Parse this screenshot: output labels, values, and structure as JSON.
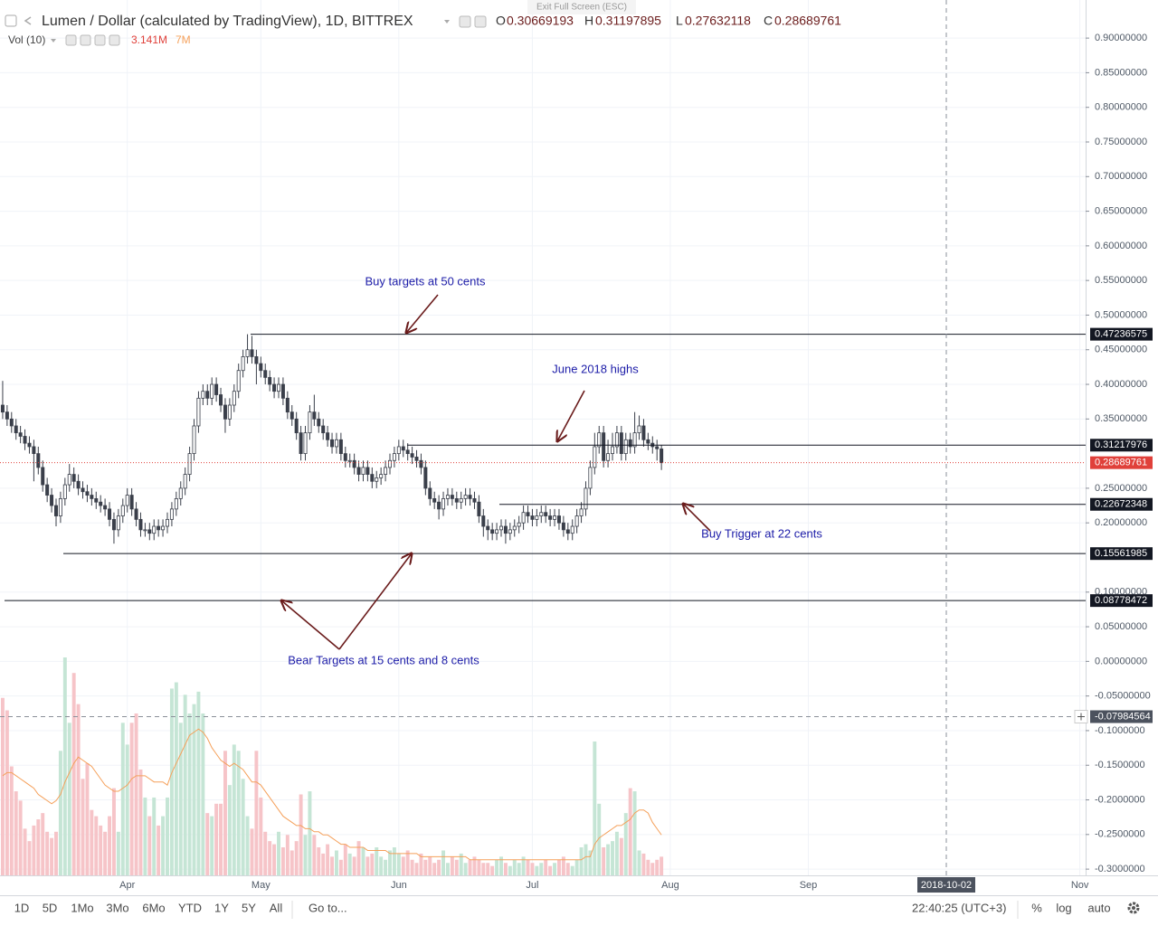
{
  "chart_data": {
    "type": "candlestick",
    "title": "Lumen / Dollar (calculated by TradingView), 1D, BITTREX",
    "categories": [
      null,
      null,
      null,
      null,
      null,
      null,
      null,
      null,
      null,
      null,
      null,
      null,
      null,
      null,
      null,
      null,
      null,
      null,
      null,
      null,
      null,
      null,
      null,
      null,
      null,
      null,
      null,
      null,
      null,
      null,
      null,
      null,
      null,
      null,
      null,
      null,
      null,
      null,
      null,
      null,
      null,
      null,
      null,
      null,
      null,
      null,
      null,
      null,
      null,
      null,
      null,
      null,
      null,
      null,
      null,
      null,
      null,
      null,
      null,
      null,
      null,
      null,
      null,
      null,
      null,
      null,
      null,
      null,
      null,
      null,
      null,
      null,
      null,
      null,
      null,
      null,
      null,
      null,
      null,
      null,
      null,
      null,
      null,
      null,
      null,
      null,
      null,
      null,
      null,
      null,
      null,
      null,
      null,
      null,
      null,
      null,
      null,
      null,
      null,
      null,
      null,
      null,
      null,
      null,
      null,
      null,
      null,
      null,
      null,
      null,
      null,
      null,
      null,
      null,
      null,
      null,
      null,
      null,
      null,
      null,
      null,
      null,
      null,
      null,
      null,
      null,
      null,
      null,
      null,
      null,
      null,
      null,
      null,
      null,
      null,
      null,
      null,
      null,
      null,
      null,
      null,
      null,
      null,
      null,
      null,
      null,
      null,
      null,
      null
    ],
    "open": [
      0.37,
      0.36,
      0.35,
      0.34,
      0.33,
      0.325,
      0.315,
      0.31,
      0.3,
      0.28,
      0.255,
      0.24,
      0.225,
      0.21,
      0.235,
      0.255,
      0.27,
      0.26,
      0.25,
      0.245,
      0.24,
      0.235,
      0.23,
      0.225,
      0.22,
      0.205,
      0.19,
      0.21,
      0.225,
      0.24,
      0.22,
      0.205,
      0.19,
      0.19,
      0.185,
      0.195,
      0.19,
      0.195,
      0.205,
      0.22,
      0.235,
      0.25,
      0.27,
      0.3,
      0.34,
      0.38,
      0.39,
      0.38,
      0.4,
      0.385,
      0.37,
      0.35,
      0.37,
      0.39,
      0.42,
      0.44,
      0.45,
      0.44,
      0.43,
      0.42,
      0.41,
      0.4,
      0.39,
      0.4,
      0.38,
      0.36,
      0.35,
      0.33,
      0.3,
      0.33,
      0.36,
      0.35,
      0.34,
      0.33,
      0.32,
      0.31,
      0.32,
      0.3,
      0.29,
      0.29,
      0.28,
      0.27,
      0.28,
      0.27,
      0.26,
      0.265,
      0.27,
      0.28,
      0.29,
      0.3,
      0.31,
      0.305,
      0.3,
      0.295,
      0.29,
      0.28,
      0.25,
      0.235,
      0.23,
      0.22,
      0.235,
      0.24,
      0.235,
      0.23,
      0.235,
      0.24,
      0.235,
      0.23,
      0.21,
      0.195,
      0.19,
      0.185,
      0.19,
      0.195,
      0.185,
      0.19,
      0.195,
      0.2,
      0.215,
      0.21,
      0.205,
      0.21,
      0.215,
      0.21,
      0.205,
      0.21,
      0.2,
      0.19,
      0.185,
      0.195,
      0.21,
      0.22,
      0.25,
      0.28,
      0.31,
      0.33,
      0.29,
      0.3,
      0.31,
      0.33,
      0.3,
      0.32,
      0.31,
      0.33,
      0.34,
      0.32,
      0.315,
      0.31,
      0.30669193
    ],
    "high": [
      0.405,
      0.37,
      0.36,
      0.35,
      0.34,
      0.335,
      0.325,
      0.32,
      0.31,
      0.29,
      0.265,
      0.25,
      0.235,
      0.245,
      0.265,
      0.285,
      0.28,
      0.27,
      0.26,
      0.255,
      0.25,
      0.245,
      0.24,
      0.235,
      0.23,
      0.215,
      0.22,
      0.235,
      0.25,
      0.25,
      0.23,
      0.215,
      0.2,
      0.2,
      0.205,
      0.205,
      0.205,
      0.215,
      0.23,
      0.245,
      0.26,
      0.28,
      0.31,
      0.35,
      0.39,
      0.4,
      0.4,
      0.41,
      0.41,
      0.395,
      0.38,
      0.38,
      0.4,
      0.43,
      0.45,
      0.4724,
      0.47,
      0.45,
      0.44,
      0.43,
      0.42,
      0.41,
      0.41,
      0.41,
      0.39,
      0.37,
      0.36,
      0.34,
      0.34,
      0.37,
      0.385,
      0.36,
      0.35,
      0.34,
      0.33,
      0.33,
      0.33,
      0.31,
      0.3,
      0.3,
      0.29,
      0.29,
      0.29,
      0.28,
      0.275,
      0.28,
      0.29,
      0.3,
      0.31,
      0.32,
      0.32,
      0.315,
      0.31,
      0.305,
      0.3,
      0.29,
      0.26,
      0.245,
      0.24,
      0.245,
      0.25,
      0.25,
      0.245,
      0.245,
      0.25,
      0.25,
      0.245,
      0.24,
      0.22,
      0.205,
      0.2,
      0.2,
      0.205,
      0.205,
      0.2,
      0.205,
      0.21,
      0.225,
      0.225,
      0.22,
      0.22,
      0.225,
      0.225,
      0.22,
      0.22,
      0.22,
      0.21,
      0.2,
      0.205,
      0.22,
      0.23,
      0.26,
      0.29,
      0.33,
      0.34,
      0.34,
      0.32,
      0.33,
      0.34,
      0.34,
      0.33,
      0.33,
      0.36,
      0.355,
      0.35,
      0.33,
      0.325,
      0.32,
      0.31197895
    ],
    "low": [
      0.35,
      0.34,
      0.33,
      0.32,
      0.315,
      0.305,
      0.3,
      0.26,
      0.27,
      0.245,
      0.23,
      0.215,
      0.195,
      0.2,
      0.225,
      0.245,
      0.25,
      0.24,
      0.235,
      0.23,
      0.225,
      0.22,
      0.215,
      0.21,
      0.195,
      0.17,
      0.18,
      0.2,
      0.215,
      0.21,
      0.195,
      0.18,
      0.18,
      0.175,
      0.175,
      0.18,
      0.18,
      0.185,
      0.195,
      0.21,
      0.225,
      0.24,
      0.26,
      0.29,
      0.33,
      0.37,
      0.37,
      0.37,
      0.375,
      0.36,
      0.33,
      0.34,
      0.36,
      0.38,
      0.41,
      0.43,
      0.43,
      0.4,
      0.41,
      0.4,
      0.39,
      0.38,
      0.38,
      0.37,
      0.35,
      0.34,
      0.32,
      0.29,
      0.29,
      0.32,
      0.34,
      0.33,
      0.32,
      0.31,
      0.3,
      0.3,
      0.29,
      0.28,
      0.28,
      0.27,
      0.26,
      0.26,
      0.26,
      0.25,
      0.25,
      0.255,
      0.26,
      0.27,
      0.28,
      0.29,
      0.295,
      0.29,
      0.285,
      0.28,
      0.27,
      0.24,
      0.225,
      0.22,
      0.205,
      0.21,
      0.225,
      0.225,
      0.22,
      0.22,
      0.225,
      0.225,
      0.22,
      0.2,
      0.18,
      0.175,
      0.175,
      0.175,
      0.18,
      0.17,
      0.175,
      0.18,
      0.185,
      0.19,
      0.2,
      0.195,
      0.195,
      0.2,
      0.2,
      0.195,
      0.195,
      0.19,
      0.18,
      0.175,
      0.175,
      0.185,
      0.2,
      0.21,
      0.24,
      0.27,
      0.3,
      0.28,
      0.28,
      0.29,
      0.3,
      0.29,
      0.29,
      0.3,
      0.3,
      0.32,
      0.31,
      0.305,
      0.3,
      0.29,
      0.27632118
    ],
    "close": [
      0.36,
      0.35,
      0.34,
      0.33,
      0.325,
      0.315,
      0.31,
      0.3,
      0.28,
      0.255,
      0.24,
      0.225,
      0.21,
      0.235,
      0.255,
      0.27,
      0.26,
      0.25,
      0.245,
      0.24,
      0.235,
      0.23,
      0.225,
      0.22,
      0.205,
      0.19,
      0.21,
      0.225,
      0.24,
      0.22,
      0.205,
      0.19,
      0.19,
      0.185,
      0.195,
      0.19,
      0.195,
      0.205,
      0.22,
      0.235,
      0.25,
      0.27,
      0.3,
      0.34,
      0.38,
      0.39,
      0.38,
      0.4,
      0.385,
      0.37,
      0.35,
      0.37,
      0.39,
      0.42,
      0.44,
      0.45,
      0.44,
      0.43,
      0.42,
      0.41,
      0.4,
      0.39,
      0.4,
      0.38,
      0.36,
      0.35,
      0.33,
      0.3,
      0.33,
      0.36,
      0.35,
      0.34,
      0.33,
      0.32,
      0.31,
      0.32,
      0.3,
      0.29,
      0.29,
      0.28,
      0.27,
      0.28,
      0.27,
      0.26,
      0.265,
      0.27,
      0.28,
      0.29,
      0.3,
      0.31,
      0.305,
      0.3,
      0.295,
      0.29,
      0.28,
      0.25,
      0.235,
      0.23,
      0.22,
      0.235,
      0.24,
      0.235,
      0.23,
      0.235,
      0.24,
      0.235,
      0.23,
      0.21,
      0.195,
      0.19,
      0.185,
      0.19,
      0.195,
      0.185,
      0.19,
      0.195,
      0.2,
      0.215,
      0.21,
      0.205,
      0.21,
      0.215,
      0.21,
      0.205,
      0.21,
      0.2,
      0.19,
      0.185,
      0.195,
      0.21,
      0.22,
      0.25,
      0.28,
      0.31,
      0.33,
      0.29,
      0.3,
      0.31,
      0.33,
      0.3,
      0.32,
      0.31,
      0.33,
      0.34,
      0.32,
      0.315,
      0.31,
      0.307,
      0.28689761
    ],
    "candle_color": "#3a3f4a",
    "up_fill": "#ffffff",
    "xlim": [
      -0.6,
      243.3
    ],
    "xticks": [
      {
        "value": 28,
        "label": "Apr"
      },
      {
        "value": 58,
        "label": "May"
      },
      {
        "value": 89,
        "label": "Jun"
      },
      {
        "value": 119,
        "label": "Jul"
      },
      {
        "value": 150,
        "label": "Aug"
      },
      {
        "value": 181,
        "label": "Sep"
      },
      {
        "value": 242,
        "label": "Nov"
      }
    ],
    "ylim": [
      -0.309,
      0.955
    ],
    "yticks": [
      {
        "value": 0.9,
        "label": "0.90000000"
      },
      {
        "value": 0.85,
        "label": "0.85000000"
      },
      {
        "value": 0.8,
        "label": "0.80000000"
      },
      {
        "value": 0.75,
        "label": "0.75000000"
      },
      {
        "value": 0.7,
        "label": "0.70000000"
      },
      {
        "value": 0.65,
        "label": "0.65000000"
      },
      {
        "value": 0.6,
        "label": "0.60000000"
      },
      {
        "value": 0.55,
        "label": "0.55000000"
      },
      {
        "value": 0.5,
        "label": "0.50000000"
      },
      {
        "value": 0.45,
        "label": "0.45000000"
      },
      {
        "value": 0.4,
        "label": "0.40000000"
      },
      {
        "value": 0.35,
        "label": "0.35000000"
      },
      {
        "value": 0.25,
        "label": "0.25000000"
      },
      {
        "value": 0.2,
        "label": "0.20000000"
      },
      {
        "value": 0.1,
        "label": "0.10000000"
      },
      {
        "value": 0.05,
        "label": "0.05000000"
      },
      {
        "value": 0,
        "label": "0.00000000"
      },
      {
        "value": -0.05,
        "label": "-0.05000000"
      },
      {
        "value": -0.1,
        "label": "-0.1000000"
      },
      {
        "value": -0.15,
        "label": "-0.1500000"
      },
      {
        "value": -0.2,
        "label": "-0.2000000"
      },
      {
        "value": -0.25,
        "label": "-0.2500000"
      },
      {
        "value": -0.3,
        "label": "-0.3000000"
      }
    ],
    "grid": true,
    "levels": [
      0.47236575,
      0.31217976,
      0.22672348,
      0.15561985,
      0.08778472
    ],
    "level_color": "#131722",
    "last_price": 0.28689761,
    "last_price_color": "#e0403a",
    "crosshair": {
      "x": {
        "value": 212,
        "label": "2018-10-02"
      },
      "y": -0.07984564
    },
    "annotations": [
      "Buy targets at 50 cents",
      "June 2018 highs",
      "Buy Trigger at 22 cents",
      "Bear Targets at 15 cents and 8 cents"
    ],
    "annotation_color": "#1c1ca8",
    "arrow_color": "#6a1b1b",
    "volume": {
      "name": "Vol (10)",
      "last_label": "3.141M",
      "ma_label": "7M",
      "ylim": [
        0,
        7
      ],
      "up_color": "#c5e5d5",
      "down_color": "#f6c4c8",
      "ma_color": "#f5a05a",
      "values": [
        5.7,
        5.3,
        3.5,
        2.7,
        2.4,
        1.5,
        1.1,
        1.6,
        1.8,
        2.0,
        1.4,
        1.2,
        1.4,
        4.0,
        7.0,
        4.9,
        6.5,
        5.5,
        3.1,
        3.6,
        2.1,
        1.9,
        1.6,
        1.4,
        1.9,
        2.8,
        1.4,
        4.9,
        4.2,
        4.9,
        5.2,
        3.4,
        2.5,
        1.9,
        2.5,
        1.6,
        1.9,
        2.5,
        6.0,
        6.2,
        4.9,
        5.8,
        5.2,
        5.5,
        5.9,
        5.2,
        2.0,
        1.9,
        2.3,
        2.3,
        4.0,
        2.9,
        4.2,
        4.0,
        3.1,
        1.9,
        1.5,
        4.0,
        2.5,
        1.4,
        1.1,
        1.0,
        1.4,
        0.9,
        1.3,
        0.8,
        1.1,
        2.6,
        1.3,
        2.7,
        1.3,
        0.9,
        0.7,
        1.0,
        0.6,
        0.8,
        0.5,
        1.0,
        0.7,
        0.6,
        1.1,
        0.9,
        0.6,
        0.7,
        0.9,
        0.6,
        0.5,
        0.8,
        0.9,
        0.7,
        0.6,
        0.8,
        0.5,
        0.4,
        0.7,
        0.5,
        0.6,
        0.4,
        0.5,
        0.8,
        0.4,
        0.6,
        0.5,
        0.7,
        0.4,
        0.5,
        0.6,
        0.5,
        0.4,
        0.4,
        0.3,
        0.5,
        0.6,
        0.4,
        0.3,
        0.5,
        0.4,
        0.6,
        0.5,
        0.4,
        0.3,
        0.4,
        0.5,
        0.3,
        0.4,
        0.5,
        0.6,
        0.4,
        0.3,
        0.5,
        0.9,
        1.0,
        0.8,
        4.3,
        2.3,
        0.9,
        1.0,
        1.1,
        1.4,
        1.2,
        2.0,
        2.8,
        2.7,
        0.8,
        0.7,
        0.5,
        0.4,
        0.5,
        0.6
      ],
      "ma": [
        3.2,
        3.3,
        3.3,
        3.2,
        3.1,
        3.0,
        2.9,
        2.8,
        2.6,
        2.5,
        2.4,
        2.3,
        2.4,
        2.6,
        3.0,
        3.3,
        3.6,
        3.8,
        3.7,
        3.6,
        3.5,
        3.3,
        3.1,
        2.9,
        2.8,
        2.7,
        2.7,
        2.8,
        2.9,
        3.1,
        3.2,
        3.2,
        3.2,
        3.1,
        3.0,
        3.0,
        3.0,
        2.9,
        3.3,
        3.6,
        3.9,
        4.2,
        4.5,
        4.6,
        4.7,
        4.6,
        4.4,
        4.1,
        3.9,
        3.7,
        3.6,
        3.5,
        3.6,
        3.5,
        3.4,
        3.2,
        3.0,
        3.0,
        2.9,
        2.7,
        2.5,
        2.3,
        2.1,
        1.9,
        1.8,
        1.7,
        1.6,
        1.6,
        1.5,
        1.5,
        1.4,
        1.4,
        1.3,
        1.3,
        1.2,
        1.1,
        1.0,
        1.0,
        0.9,
        0.9,
        0.9,
        0.9,
        0.8,
        0.8,
        0.8,
        0.8,
        0.8,
        0.7,
        0.7,
        0.7,
        0.7,
        0.7,
        0.7,
        0.7,
        0.6,
        0.6,
        0.6,
        0.6,
        0.6,
        0.6,
        0.6,
        0.6,
        0.6,
        0.6,
        0.6,
        0.5,
        0.5,
        0.5,
        0.5,
        0.5,
        0.5,
        0.5,
        0.5,
        0.5,
        0.5,
        0.5,
        0.5,
        0.5,
        0.5,
        0.5,
        0.5,
        0.5,
        0.5,
        0.5,
        0.5,
        0.5,
        0.5,
        0.5,
        0.5,
        0.5,
        0.5,
        0.6,
        0.6,
        1.0,
        1.2,
        1.3,
        1.4,
        1.5,
        1.6,
        1.6,
        1.7,
        1.8,
        2.0,
        2.1,
        2.1,
        2.0,
        1.7,
        1.5,
        1.3
      ]
    }
  },
  "header": {
    "ohlc_letters": [
      "O",
      "H",
      "L",
      "C"
    ],
    "ohlc_values": [
      0.30669193,
      0.31197895,
      0.27632118,
      0.28689761
    ],
    "exit": "Exit Full Screen (ESC)"
  },
  "toolbar": {
    "ranges": [
      "1D",
      "5D",
      "1Mo",
      "3Mo",
      "6Mo",
      "YTD",
      "1Y",
      "5Y",
      "All"
    ],
    "goto": "Go to...",
    "time": "22:40:25 (UTC+3)",
    "percent": "%",
    "log": "log",
    "auto": "auto"
  }
}
